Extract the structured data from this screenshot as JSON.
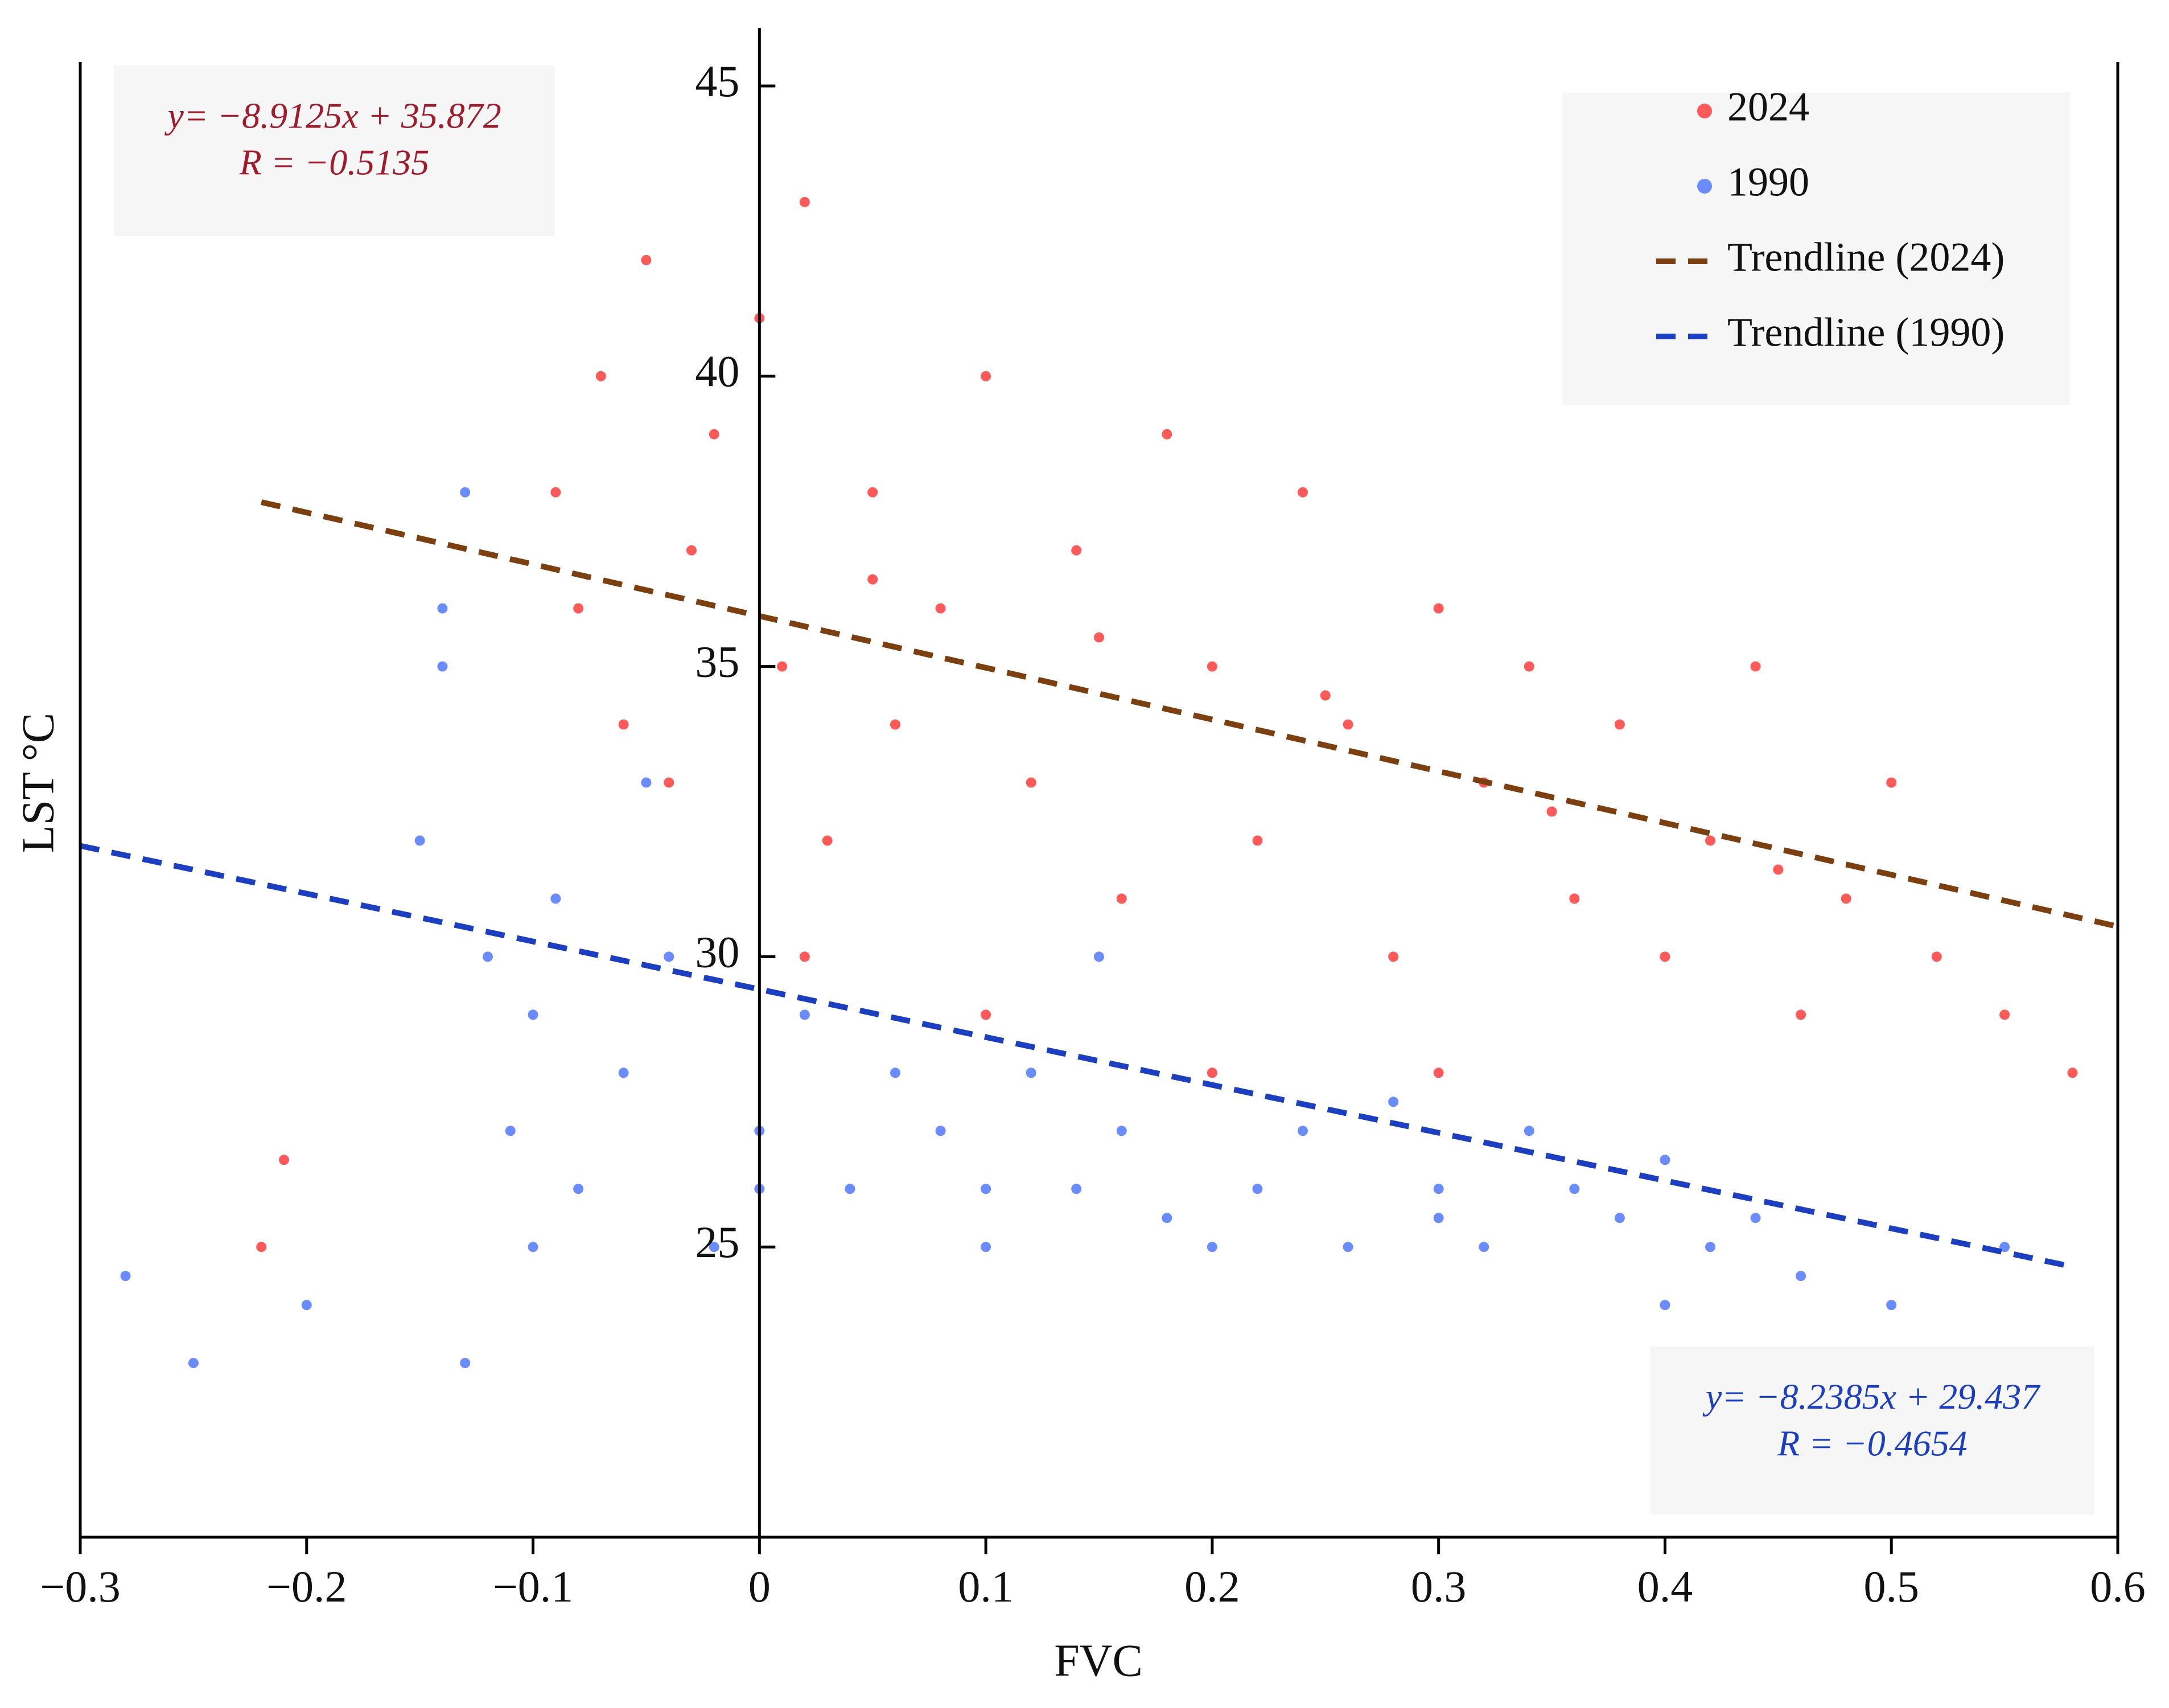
{
  "chart_data": {
    "type": "scatter",
    "xlabel": "FVC",
    "ylabel": "LST  °C",
    "xlim": [
      -0.3,
      0.6
    ],
    "ylim": [
      20,
      46
    ],
    "xticks": [
      {
        "value": -0.3,
        "label": "−0.3"
      },
      {
        "value": -0.2,
        "label": "−0.2"
      },
      {
        "value": -0.1,
        "label": "−0.1"
      },
      0,
      0.1,
      0.2,
      0.3,
      0.4,
      0.5,
      0.6
    ],
    "yticks": [
      25,
      30,
      35,
      40,
      45
    ],
    "legend": "upper right",
    "series": [
      {
        "name": "2024",
        "color": "#ff5a5a",
        "kind": "points",
        "x": [
          -0.09,
          -0.08,
          -0.07,
          -0.06,
          -0.05,
          -0.04,
          -0.03,
          -0.02,
          0,
          0.01,
          0.02,
          0.03,
          0.05,
          0.06,
          0.08,
          0.1,
          0.12,
          0.14,
          0.16,
          0.18,
          0.2,
          0.22,
          0.24,
          0.26,
          0.28,
          0.3,
          0.32,
          0.34,
          0.36,
          0.38,
          0.4,
          0.42,
          0.44,
          0.46,
          0.48,
          0.5,
          0.52,
          0.55,
          0.58,
          -0.22,
          -0.21,
          0.02,
          0.1,
          0.2,
          0.3,
          0.05,
          0.15,
          0.25,
          0.35,
          0.45
        ],
        "values": [
          38,
          36,
          40,
          34,
          42,
          33,
          37,
          39,
          41,
          35,
          43,
          32,
          38,
          34,
          36,
          40,
          33,
          37,
          31,
          39,
          35,
          32,
          38,
          34,
          30,
          36,
          33,
          35,
          31,
          34,
          30,
          32,
          35,
          29,
          31,
          33,
          30,
          29,
          28,
          25,
          26.5,
          30,
          29,
          28,
          28,
          36.5,
          35.5,
          34.5,
          32.5,
          31.5
        ]
      },
      {
        "name": "1990",
        "color": "#6b8cff",
        "kind": "points",
        "x": [
          -0.15,
          -0.14,
          -0.13,
          -0.12,
          -0.11,
          -0.1,
          -0.09,
          -0.08,
          -0.06,
          -0.04,
          -0.02,
          0,
          0.02,
          0.04,
          0.06,
          0.08,
          0.1,
          0.12,
          0.14,
          0.16,
          0.18,
          0.2,
          0.22,
          0.24,
          0.26,
          0.28,
          0.3,
          0.32,
          0.34,
          0.36,
          0.38,
          0.4,
          0.42,
          0.44,
          0.46,
          0.5,
          0.55,
          -0.25,
          -0.28,
          -0.2,
          -0.13,
          -0.1,
          0,
          0.1,
          0.2,
          0.3,
          0.4,
          -0.14,
          -0.05,
          0.15
        ],
        "values": [
          32,
          35,
          38,
          30,
          27,
          29,
          31,
          26,
          28,
          30,
          25,
          27,
          29,
          26,
          28,
          27,
          25,
          28,
          26,
          27,
          25.5,
          28,
          26,
          27,
          25,
          27.5,
          26,
          25,
          27,
          26,
          25.5,
          26.5,
          25,
          25.5,
          24.5,
          24,
          25,
          23,
          24.5,
          24,
          23,
          25,
          26,
          26,
          25,
          25.5,
          24,
          36,
          33,
          30
        ]
      },
      {
        "name": "Trendline (2024)",
        "color": "#7b3f10",
        "kind": "dashed-line",
        "x": [
          -0.22,
          0.6
        ],
        "values": [
          37.83,
          30.52
        ]
      },
      {
        "name": "Trendline (1990)",
        "color": "#1b3fbf",
        "kind": "dashed-line",
        "x": [
          -0.3,
          0.58
        ],
        "values": [
          31.91,
          24.66
        ]
      }
    ],
    "annotations": [
      {
        "lines": [
          "y= −8.9125x + 35.872",
          "R = −0.5135"
        ],
        "color": "#a01c2c",
        "position": "upper left"
      },
      {
        "lines": [
          "y= −8.2385x + 29.437",
          "R = −0.4654"
        ],
        "color": "#1b3fbf",
        "position": "lower right"
      }
    ]
  }
}
